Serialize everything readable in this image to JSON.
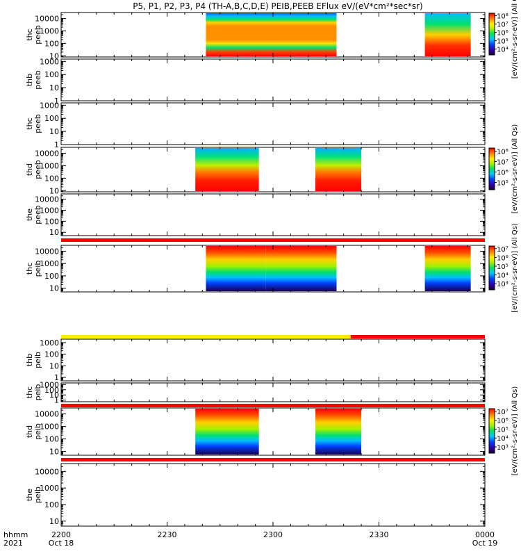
{
  "title": "P5, P1, P2, P3, P4 (TH-A,B,C,D,E) PEIB,PEEB EFlux eV/(eV*cm²*sec*sr)",
  "xaxis": {
    "row1": [
      "2200",
      "2230",
      "2300",
      "2330",
      "0000"
    ],
    "row2": [
      "Oct 18",
      "",
      "",
      "",
      "Oct 19"
    ],
    "left_label1": "hhmm",
    "left_label2": "2021"
  },
  "chart_data": {
    "type": "heatmap",
    "x_range": [
      "2021-10-18 22:00",
      "2021-10-19 00:00"
    ],
    "y_scale": "log",
    "y_unit": "eV",
    "colorbar_label": "[eV/(cm²-s-sr-eV)] (All Qs)",
    "panels": [
      {
        "name": "thc peeb",
        "line1": "thc",
        "line2": "peeb",
        "ylim": [
          8,
          30000
        ],
        "yticks": [
          "10000",
          "1000",
          "100",
          "10"
        ],
        "y_values": [
          10000,
          1000,
          100,
          10
        ],
        "colorbar": {
          "labels": [
            "10⁸",
            "10⁷",
            "10⁶",
            "10⁵",
            "10⁴"
          ],
          "exps": [
            8,
            7,
            6,
            5,
            4
          ]
        },
        "blocks": [
          {
            "start": "22:41",
            "end": "23:18",
            "style": "ee_c"
          },
          {
            "start": "23:43",
            "end": "23:56",
            "style": "ee_c2"
          }
        ]
      },
      {
        "name": "thb peeb",
        "line1": "thb",
        "line2": "peeb",
        "ylim": [
          1,
          1500
        ],
        "yticks": [
          "1000",
          "100",
          "10",
          "1"
        ],
        "y_values": [
          1000,
          100,
          10,
          1
        ],
        "blocks": []
      },
      {
        "name": "thc peeb",
        "line1": "thc",
        "line2": "peeb",
        "ylim": [
          1,
          1500
        ],
        "yticks": [
          "1000",
          "100",
          "10",
          "1"
        ],
        "y_values": [
          1000,
          100,
          10,
          1
        ],
        "blocks": []
      },
      {
        "name": "thd peeb",
        "line1": "thd",
        "line2": "peeb",
        "ylim": [
          8,
          30000
        ],
        "yticks": [
          "10000",
          "1000",
          "100",
          "10"
        ],
        "y_values": [
          10000,
          1000,
          100,
          10
        ],
        "colorbar": {
          "labels": [
            "10⁸",
            "10⁷",
            "10⁶",
            "10⁵"
          ],
          "exps": [
            8,
            7,
            6,
            5
          ]
        },
        "blocks": [
          {
            "start": "22:38",
            "end": "22:56",
            "style": "ee_d"
          },
          {
            "start": "23:12",
            "end": "23:25",
            "style": "ee_d"
          }
        ]
      },
      {
        "name": "the peeb",
        "line1": "the",
        "line2": "peeb",
        "ylim": [
          5,
          30000
        ],
        "yticks": [
          "10000",
          "1000",
          "100",
          "10"
        ],
        "y_values": [
          10000,
          1000,
          100,
          10
        ],
        "blocks": []
      },
      {
        "name": "thc peib",
        "line1": "thc",
        "line2": "peib",
        "ylim": [
          5,
          30000
        ],
        "yticks": [
          "10000",
          "1000",
          "100",
          "10"
        ],
        "y_values": [
          10000,
          1000,
          100,
          10
        ],
        "colorbar": {
          "labels": [
            "10⁷",
            "10⁶",
            "10⁵",
            "10⁴",
            "10³"
          ],
          "exps": [
            7,
            6,
            5,
            4,
            3
          ]
        },
        "blocks": [
          {
            "start": "22:41",
            "end": "22:58",
            "style": "ion"
          },
          {
            "start": "22:58",
            "end": "23:18",
            "style": "ion"
          },
          {
            "start": "23:43",
            "end": "23:56",
            "style": "ion"
          }
        ]
      },
      {
        "name": "thb peib",
        "line1": "thb",
        "line2": "peib",
        "ylim": [
          0.5,
          2000
        ],
        "yticks": [
          "1000",
          "100",
          "10",
          "1"
        ],
        "y_values": [
          1000,
          100,
          10,
          1
        ],
        "blocks": []
      },
      {
        "name": "thc peib",
        "line1": "thc",
        "line2": "peib",
        "ylim": [
          0.5,
          2000
        ],
        "yticks": [
          "1000",
          "100",
          "10",
          "1"
        ],
        "y_values": [
          1000,
          100,
          10,
          1
        ],
        "blocks": []
      },
      {
        "name": "thd peib",
        "line1": "thd",
        "line2": "peib",
        "ylim": [
          5,
          30000
        ],
        "yticks": [
          "10000",
          "1000",
          "100",
          "10"
        ],
        "y_values": [
          10000,
          1000,
          100,
          10
        ],
        "colorbar": {
          "labels": [
            "10⁷",
            "10⁶",
            "10⁵",
            "10⁴",
            "10³"
          ],
          "exps": [
            7,
            6,
            5,
            4,
            3
          ]
        },
        "blocks": [
          {
            "start": "22:38",
            "end": "22:56",
            "style": "ion"
          },
          {
            "start": "23:12",
            "end": "23:25",
            "style": "ion"
          }
        ]
      },
      {
        "name": "the peib",
        "line1": "the",
        "line2": "peib",
        "ylim": [
          5,
          30000
        ],
        "yticks": [
          "10000",
          "1000",
          "100",
          "10"
        ],
        "y_values": [
          10000,
          1000,
          100,
          10
        ],
        "blocks": []
      }
    ],
    "mode_bars": [
      {
        "after_panel": 4,
        "segments": [
          {
            "start": "22:00",
            "end": "00:00",
            "color": "#ff0000"
          }
        ]
      },
      {
        "after_panel": 5,
        "segments": [
          {
            "start": "22:00",
            "end": "23:22",
            "color": "#ffee00"
          },
          {
            "start": "23:22",
            "end": "00:00",
            "color": "#ff0000"
          }
        ]
      },
      {
        "after_panel": 7,
        "segments": [
          {
            "start": "22:00",
            "end": "00:00",
            "color": "#ff0000"
          }
        ]
      },
      {
        "after_panel": 8,
        "segments": [
          {
            "start": "22:00",
            "end": "00:00",
            "color": "#ff0000"
          }
        ]
      }
    ]
  }
}
